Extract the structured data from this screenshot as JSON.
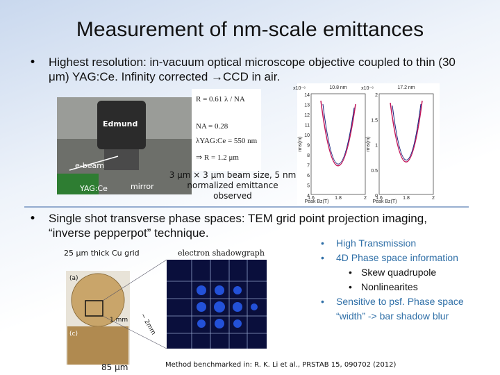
{
  "title": "Measurement of nm-scale emittances",
  "bullets": [
    "Highest resolution: in-vacuum optical microscope objective coupled to thin (30 μm) YAG:Ce.  Infinity corrected →CCD in air.",
    "Single shot transverse phase spaces: TEM grid point projection imaging, “inverse pepperpot” technique."
  ],
  "photo_labels": [
    "Edmund",
    "e-beam",
    "YAG:Ce",
    "mirror"
  ],
  "equations": [
    "R = 0.61 λ / NA",
    "NA = 0.28",
    "λYAG:Ce = 550 nm",
    "⇒ R = 1.2 μm"
  ],
  "beam_note": "3 μm × 3 μm beam size, 5 nm normalized emittance observed",
  "plots": [
    {
      "title": "10.8 nm",
      "scale": "x10⁻⁶",
      "ylabel": "rms(m)",
      "xlabel": "Peak Bz(T)",
      "yticks": [
        "14",
        "13",
        "12",
        "11",
        "10",
        "9",
        "8",
        "7",
        "6",
        "5",
        "4"
      ],
      "xticks": [
        "1.6",
        "1.8",
        "2"
      ]
    },
    {
      "title": "17.2 nm",
      "scale": "x10⁻⁶",
      "ylabel": "rms(m)",
      "xlabel": "Peak Bz(T)",
      "yticks": [
        "2",
        "1.5",
        "1",
        "0.5",
        "0"
      ],
      "xticks": [
        "1.6",
        "1.8",
        "2"
      ]
    }
  ],
  "grid_caption": "25 μm thick Cu grid",
  "shadow_caption": "electron shadowgraph",
  "grid_labels": [
    "(a)",
    "1 mm",
    "(c)",
    "85 μm",
    "~ 2mm"
  ],
  "features": [
    {
      "text": "High Transmission"
    },
    {
      "text": "4D Phase space information",
      "sub": [
        "Skew quadrupole",
        "Nonlinearites"
      ]
    },
    {
      "text": "Sensitive to psf. Phase space “width” -> bar shadow blur"
    }
  ],
  "reference": "Method benchmarked in: R. K. Li et al., PRSTAB 15, 090702 (2012)"
}
